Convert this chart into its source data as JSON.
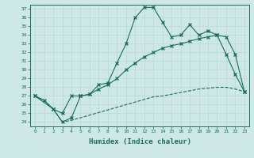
{
  "xlabel": "Humidex (Indice chaleur)",
  "bg_color": "#cde8e5",
  "line_color": "#1a6b5e",
  "grid_color": "#b8d8d4",
  "xlim": [
    -0.5,
    23.5
  ],
  "ylim": [
    23.5,
    37.5
  ],
  "xticks": [
    0,
    1,
    2,
    3,
    4,
    5,
    6,
    7,
    8,
    9,
    10,
    11,
    12,
    13,
    14,
    15,
    16,
    17,
    18,
    19,
    20,
    21,
    22,
    23
  ],
  "yticks": [
    24,
    25,
    26,
    27,
    28,
    29,
    30,
    31,
    32,
    33,
    34,
    35,
    36,
    37
  ],
  "line1_x": [
    0,
    1,
    2,
    3,
    4,
    5,
    6,
    7,
    8,
    9,
    10,
    11,
    12,
    13,
    14,
    15,
    16,
    17,
    18,
    19,
    20,
    21,
    22,
    23
  ],
  "line1_y": [
    27.0,
    26.5,
    25.5,
    24.0,
    24.5,
    27.0,
    27.2,
    28.3,
    28.5,
    30.8,
    33.0,
    36.0,
    37.2,
    37.2,
    35.5,
    33.8,
    34.0,
    35.2,
    34.0,
    34.5,
    34.0,
    31.8,
    29.5,
    27.5
  ],
  "line2_x": [
    0,
    2,
    3,
    4,
    5,
    6,
    7,
    8,
    9,
    10,
    11,
    12,
    13,
    14,
    15,
    16,
    17,
    18,
    19,
    20,
    21,
    22,
    23
  ],
  "line2_y": [
    27.0,
    25.5,
    25.0,
    27.0,
    27.0,
    27.2,
    27.8,
    28.3,
    29.0,
    30.0,
    30.8,
    31.5,
    32.0,
    32.5,
    32.8,
    33.0,
    33.3,
    33.6,
    33.8,
    34.0,
    33.8,
    31.8,
    27.5
  ],
  "line3_x": [
    0,
    1,
    2,
    3,
    4,
    5,
    6,
    7,
    8,
    9,
    10,
    11,
    12,
    13,
    14,
    15,
    16,
    17,
    18,
    19,
    20,
    21,
    22,
    23
  ],
  "line3_y": [
    27.0,
    26.5,
    25.5,
    24.0,
    24.2,
    24.5,
    24.8,
    25.1,
    25.4,
    25.7,
    26.0,
    26.3,
    26.6,
    26.9,
    27.0,
    27.2,
    27.4,
    27.6,
    27.8,
    27.9,
    28.0,
    28.0,
    27.8,
    27.5
  ]
}
